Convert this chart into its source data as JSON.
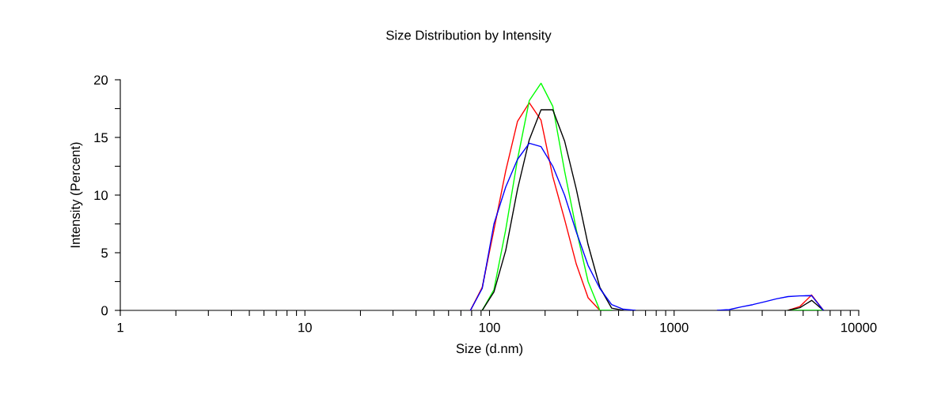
{
  "chart_data": {
    "type": "line",
    "title": "Size Distribution by Intensity",
    "xlabel": "Size (d.nm)",
    "ylabel": "Intensity (Percent)",
    "log": "x",
    "grid": false,
    "marker": "none",
    "line_style": "solid",
    "xlim": [
      1,
      10000
    ],
    "xticks": [
      1,
      {
        "value": 2,
        "label": null
      },
      {
        "value": 3,
        "label": null
      },
      {
        "value": 4,
        "label": null
      },
      {
        "value": 5,
        "label": null
      },
      {
        "value": 6,
        "label": null
      },
      {
        "value": 7,
        "label": null
      },
      {
        "value": 8,
        "label": null
      },
      {
        "value": 9,
        "label": null
      },
      10,
      {
        "value": 20,
        "label": null
      },
      {
        "value": 30,
        "label": null
      },
      {
        "value": 40,
        "label": null
      },
      {
        "value": 50,
        "label": null
      },
      {
        "value": 60,
        "label": null
      },
      {
        "value": 70,
        "label": null
      },
      {
        "value": 80,
        "label": null
      },
      {
        "value": 90,
        "label": null
      },
      100,
      {
        "value": 200,
        "label": null
      },
      {
        "value": 300,
        "label": null
      },
      {
        "value": 400,
        "label": null
      },
      {
        "value": 500,
        "label": null
      },
      {
        "value": 600,
        "label": null
      },
      {
        "value": 700,
        "label": null
      },
      {
        "value": 800,
        "label": null
      },
      {
        "value": 900,
        "label": null
      },
      1000,
      {
        "value": 2000,
        "label": null
      },
      {
        "value": 3000,
        "label": null
      },
      {
        "value": 4000,
        "label": null
      },
      {
        "value": 5000,
        "label": null
      },
      {
        "value": 6000,
        "label": null
      },
      {
        "value": 7000,
        "label": null
      },
      {
        "value": 8000,
        "label": null
      },
      {
        "value": 9000,
        "label": null
      },
      10000
    ],
    "ylim": [
      0,
      20
    ],
    "yticks": [
      0,
      {
        "value": 2.5,
        "label": null
      },
      5,
      {
        "value": 7.5,
        "label": null
      },
      10,
      {
        "value": 12.5,
        "label": null
      },
      15,
      {
        "value": 17.5,
        "label": null
      },
      20
    ],
    "series": [
      {
        "color": "#ff0000",
        "x": [
          78.82,
          91.28,
          105.7,
          122.4,
          141.8,
          164.2,
          190.1,
          220.2,
          255.0,
          295.3,
          342.0,
          396.1,
          null,
          4145,
          4801,
          5560,
          6439
        ],
        "values": [
          0,
          2.0,
          7.0,
          12.1,
          16.4,
          18.0,
          16.5,
          11.6,
          7.9,
          4.0,
          1.1,
          0,
          null,
          0,
          0.34,
          1.33,
          0
        ]
      },
      {
        "color": "#00ff00",
        "x": [
          91.28,
          105.7,
          122.4,
          141.8,
          164.2,
          190.1,
          220.2,
          255.0,
          295.3,
          342.0,
          396.1,
          458.7,
          null,
          4145,
          4801,
          5560,
          6439
        ],
        "values": [
          0,
          1.8,
          7.0,
          13.1,
          18.2,
          19.7,
          17.7,
          12.1,
          7.0,
          2.5,
          0,
          0,
          null,
          0,
          0,
          0,
          0
        ]
      },
      {
        "color": "#000000",
        "x": [
          91.28,
          105.7,
          122.4,
          141.8,
          164.2,
          190.1,
          220.2,
          255.0,
          295.3,
          342.0,
          396.1,
          458.7,
          531.2,
          null,
          4145,
          4801,
          5560,
          6439
        ],
        "values": [
          0,
          1.6,
          5.2,
          10.5,
          14.8,
          17.4,
          17.4,
          14.7,
          10.5,
          5.7,
          2.0,
          0.2,
          0,
          null,
          0,
          0.23,
          0.87,
          0
        ]
      },
      {
        "color": "#0000ff",
        "x": [
          78.82,
          91.28,
          105.7,
          122.4,
          141.8,
          164.2,
          190.1,
          220.2,
          255.0,
          295.3,
          342.0,
          396.1,
          458.7,
          531.2,
          615.1,
          null,
          1718,
          1990,
          2305,
          2669,
          3091,
          3580,
          4145,
          4801,
          5560,
          6439
        ],
        "values": [
          0,
          1.9,
          7.5,
          10.7,
          13.1,
          14.5,
          14.2,
          12.5,
          10.0,
          6.8,
          3.9,
          1.9,
          0.5,
          0.1,
          0,
          null,
          0,
          0.07,
          0.3,
          0.5,
          0.75,
          1.0,
          1.2,
          1.26,
          1.28,
          0
        ]
      }
    ]
  }
}
